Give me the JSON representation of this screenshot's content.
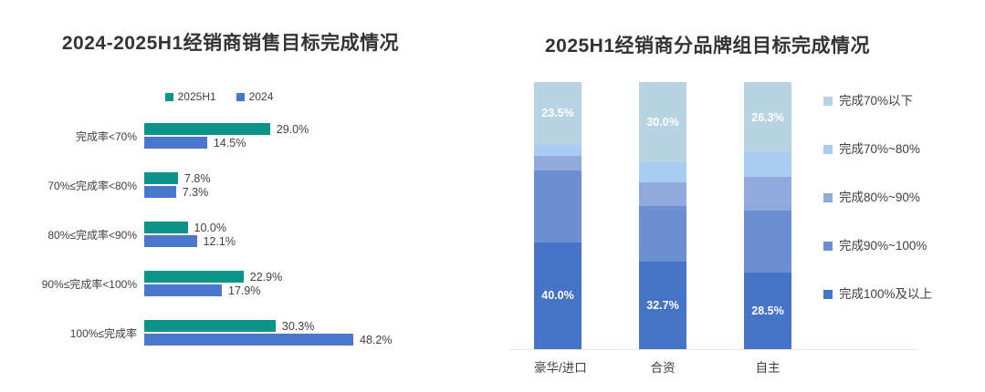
{
  "chart_data": [
    {
      "type": "bar",
      "orientation": "horizontal",
      "title": "2024-2025H1经销商销售目标完成情况",
      "categories": [
        "完成率<70%",
        "70%≤完成率<80%",
        "80%≤完成率<90%",
        "90%≤完成率<100%",
        "100%≤完成率"
      ],
      "series": [
        {
          "name": "2025H1",
          "color": "#0d9488",
          "values": [
            29.0,
            7.8,
            10.0,
            22.9,
            30.3
          ],
          "labels": [
            "29.0%",
            "7.8%",
            "10.0%",
            "22.9%",
            "30.3%"
          ]
        },
        {
          "name": "2024",
          "color": "#4a77cc",
          "values": [
            14.5,
            7.3,
            12.1,
            17.9,
            48.2
          ],
          "labels": [
            "14.5%",
            "7.3%",
            "12.1%",
            "17.9%",
            "48.2%"
          ]
        }
      ],
      "xlim": [
        0,
        50
      ],
      "value_unit": "%",
      "legend_position": "top",
      "grid": false,
      "axis_visible": false
    },
    {
      "type": "stacked-bar",
      "orientation": "vertical",
      "title": "2025H1经销商分品牌组目标完成情况",
      "categories": [
        "豪华/进口",
        "合资",
        "自主"
      ],
      "series": [
        {
          "name": "完成70%以下",
          "color": "#b7d3e4",
          "values": [
            23.5,
            30.0,
            26.3
          ],
          "labels": [
            "23.5%",
            "30.0%",
            "26.3%"
          ],
          "label_color": "#ffffff"
        },
        {
          "name": "完成70%~80%",
          "color": "#a8cdf0",
          "values": [
            4.0,
            7.4,
            9.3
          ],
          "labels": [
            null,
            null,
            null
          ]
        },
        {
          "name": "完成80%~90%",
          "color": "#92a9dc",
          "values": [
            5.5,
            9.1,
            12.6
          ],
          "labels": [
            null,
            null,
            null
          ]
        },
        {
          "name": "完成90%~100%",
          "color": "#6b8fd0",
          "values": [
            27.0,
            20.8,
            23.3
          ],
          "labels": [
            null,
            null,
            null
          ]
        },
        {
          "name": "完成100%及以上",
          "color": "#4573c5",
          "values": [
            40.0,
            32.7,
            28.5
          ],
          "labels": [
            "40.0%",
            "32.7%",
            "28.5%"
          ],
          "label_color": "#ffffff"
        }
      ],
      "ylim": [
        0,
        100
      ],
      "stack_total": 100,
      "value_unit": "%",
      "legend_position": "right",
      "grid": false
    }
  ]
}
